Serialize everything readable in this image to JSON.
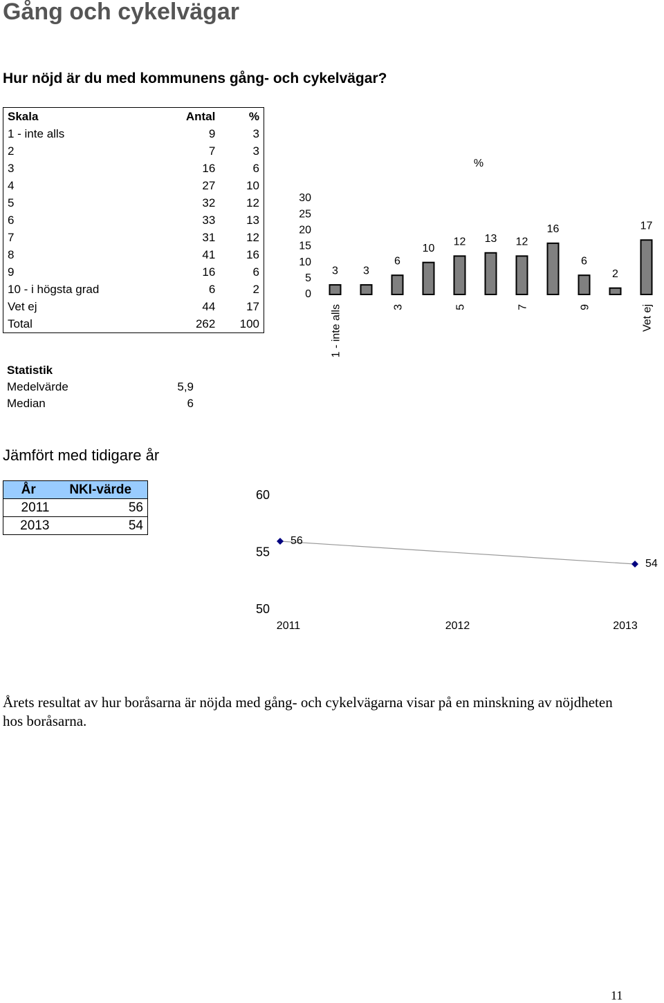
{
  "title": "Gång och cykelvägar",
  "question": "Hur nöjd är du med kommunens gång- och cykelvägar?",
  "table": {
    "headers": [
      "Skala",
      "Antal",
      "%"
    ],
    "rows": [
      [
        "1 - inte alls",
        9,
        3
      ],
      [
        "2",
        7,
        3
      ],
      [
        "3",
        16,
        6
      ],
      [
        "4",
        27,
        10
      ],
      [
        "5",
        32,
        12
      ],
      [
        "6",
        33,
        13
      ],
      [
        "7",
        31,
        12
      ],
      [
        "8",
        41,
        16
      ],
      [
        "9",
        16,
        6
      ],
      [
        "10 - i högsta grad",
        6,
        2
      ],
      [
        "Vet ej",
        44,
        17
      ],
      [
        "Total",
        262,
        100
      ]
    ]
  },
  "statistics": {
    "heading": "Statistik",
    "rows": [
      [
        "Medelvärde",
        "5,9"
      ],
      [
        "Median",
        6
      ]
    ]
  },
  "comparison": {
    "heading": "Jämfört med tidigare år",
    "headers": [
      "År",
      "NKI-värde"
    ],
    "rows": [
      [
        2011,
        56
      ],
      [
        2013,
        54
      ]
    ]
  },
  "chart_data": [
    {
      "type": "bar",
      "title": "%",
      "categories": [
        "1 - inte alls",
        null,
        "3",
        null,
        "5",
        null,
        "7",
        null,
        "9",
        null,
        "Vet ej"
      ],
      "values": [
        3,
        3,
        6,
        10,
        12,
        13,
        12,
        16,
        6,
        2,
        17
      ],
      "color": "#808080",
      "ylim": [
        0,
        30
      ],
      "yticks": [
        0,
        5,
        10,
        15,
        20,
        25,
        30
      ]
    },
    {
      "type": "line",
      "x": [
        2011,
        2013
      ],
      "xlim": [
        2011,
        2013
      ],
      "xticks": [
        2011,
        2012,
        2013
      ],
      "values": [
        56,
        54
      ],
      "color": "#000080",
      "ylim": [
        50,
        60
      ],
      "yticks": [
        50,
        55,
        60
      ]
    }
  ],
  "paragraph": "Årets resultat av hur boråsarna är nöjda med gång- och cykelvägarna visar på en minskning av nöjdheten hos boråsarna.",
  "page_number": "11"
}
